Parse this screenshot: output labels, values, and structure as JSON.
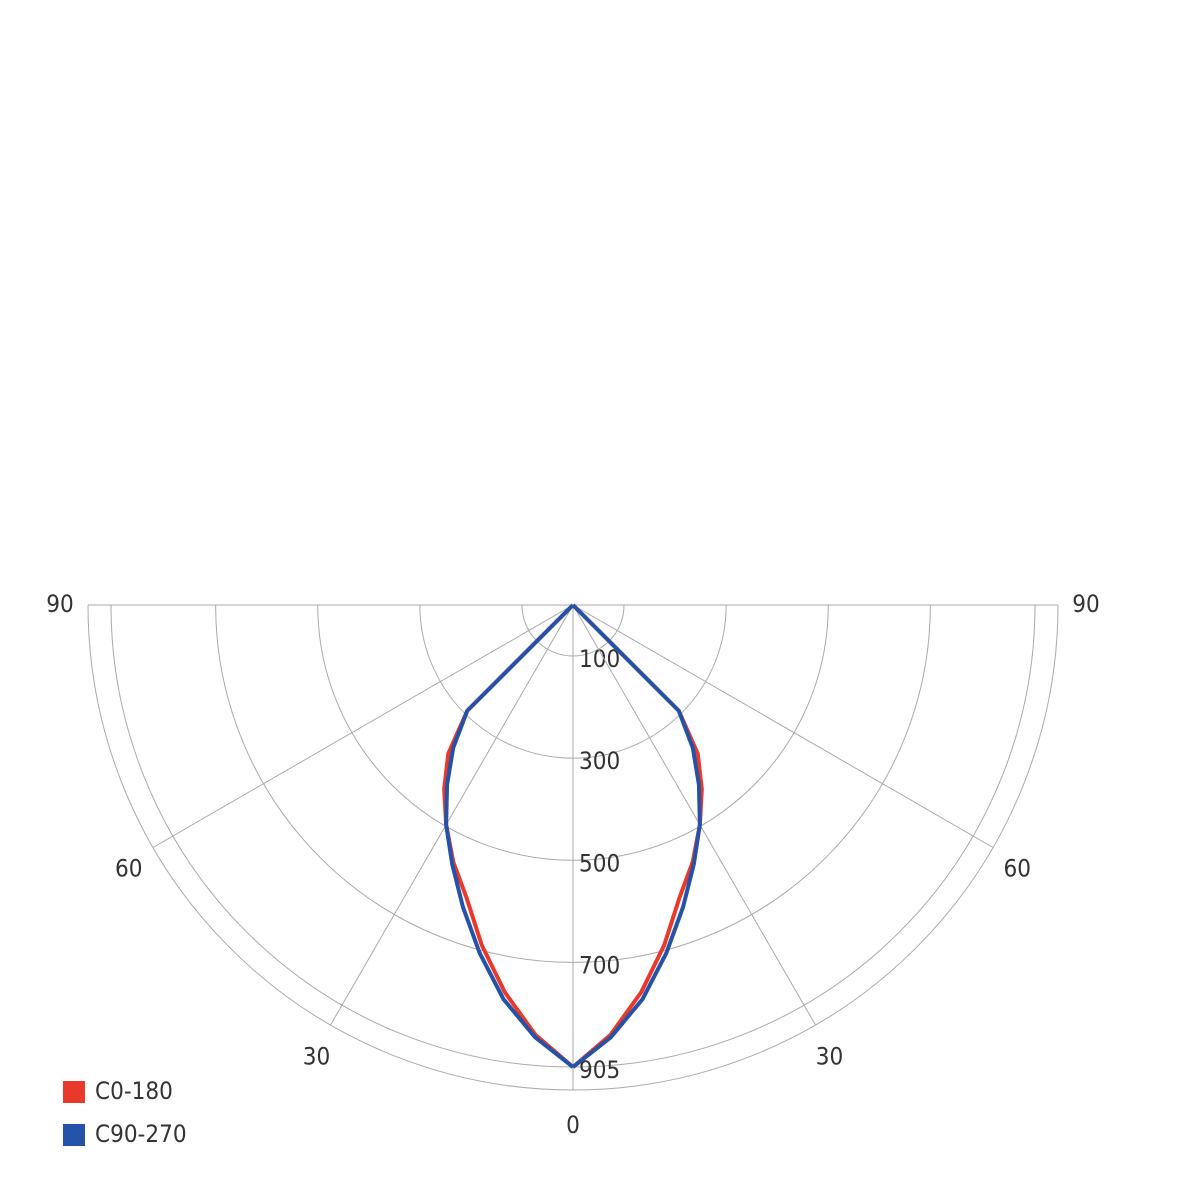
{
  "chart_data": {
    "type": "polar",
    "theta": [
      0,
      5,
      10,
      15,
      20,
      25,
      30,
      35,
      40,
      45,
      50,
      55,
      60,
      65,
      70,
      75,
      80,
      85,
      90
    ],
    "series": [
      {
        "name": "C0-180",
        "color": "#e8392b",
        "values": [
          905,
          845,
          770,
          690,
          610,
          555,
          497,
          440,
          380,
          293,
          0,
          0,
          0,
          0,
          0,
          0,
          0,
          0,
          0
        ]
      },
      {
        "name": "C90-270",
        "color": "#2452a8",
        "values": [
          905,
          850,
          784,
          706,
          630,
          560,
          497,
          430,
          365,
          293,
          0,
          0,
          0,
          0,
          0,
          0,
          0,
          0,
          0
        ]
      }
    ],
    "rlim": [
      0,
      950
    ],
    "rticks": [
      100,
      300,
      500,
      700,
      905
    ],
    "thetaticks": [
      0,
      30,
      60,
      90
    ],
    "grid": true,
    "legend": "bottom-left"
  }
}
